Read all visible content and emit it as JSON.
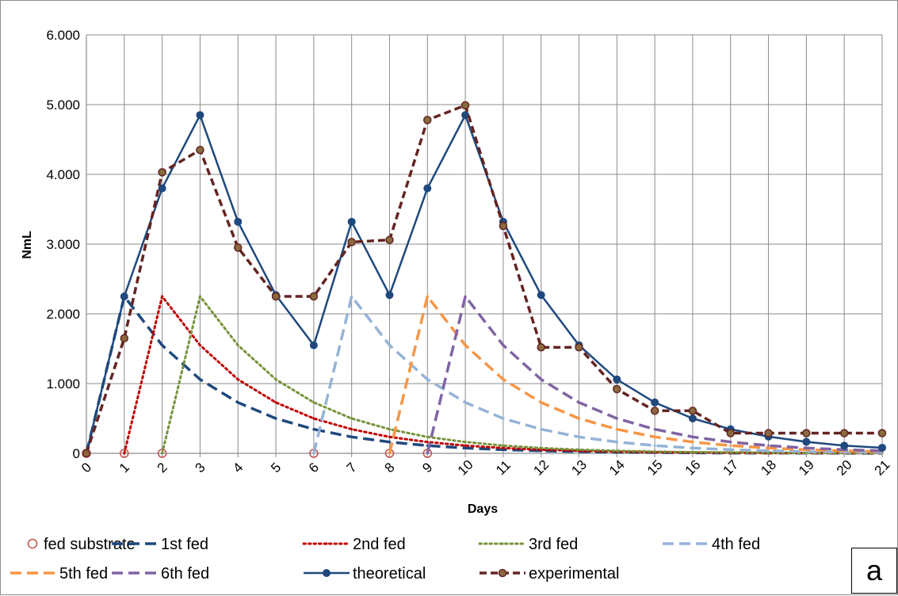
{
  "chart_data": {
    "type": "line",
    "title": "",
    "xlabel": "Days",
    "ylabel": "NmL",
    "x": [
      0,
      1,
      2,
      3,
      4,
      5,
      6,
      7,
      8,
      9,
      10,
      11,
      12,
      13,
      14,
      15,
      16,
      17,
      18,
      19,
      20,
      21
    ],
    "x_tick_labels": [
      "0",
      "1",
      "2",
      "3",
      "4",
      "5",
      "6",
      "7",
      "8",
      "9",
      "10",
      "11",
      "12",
      "13",
      "14",
      "15",
      "16",
      "17",
      "18",
      "19",
      "20",
      "21"
    ],
    "y_tick_labels": [
      "0",
      "1.000",
      "2.000",
      "3.000",
      "4.000",
      "5.000",
      "6.000"
    ],
    "y_ticks": [
      0,
      1000,
      2000,
      3000,
      4000,
      5000,
      6000
    ],
    "xlim": [
      0,
      21
    ],
    "ylim": [
      0,
      6000
    ],
    "grid": true,
    "legend_position": "bottom",
    "panel_label": "a",
    "series": [
      {
        "name": "fed substrate",
        "style": "markers",
        "color": "#c0504d",
        "points": [
          [
            0,
            0
          ],
          [
            1,
            0
          ],
          [
            2,
            0
          ],
          [
            6,
            0
          ],
          [
            8,
            0
          ],
          [
            9,
            0
          ]
        ]
      },
      {
        "name": "1st fed",
        "style": "long-dash",
        "color": "#1f497d",
        "points": [
          [
            0,
            0
          ],
          [
            1,
            2250
          ],
          [
            2,
            1550
          ],
          [
            3,
            1060
          ],
          [
            4,
            730
          ],
          [
            5,
            500
          ],
          [
            6,
            345
          ],
          [
            7,
            235
          ],
          [
            8,
            162
          ],
          [
            9,
            111
          ],
          [
            10,
            76
          ],
          [
            11,
            52
          ],
          [
            12,
            36
          ],
          [
            13,
            25
          ],
          [
            14,
            17
          ],
          [
            15,
            12
          ],
          [
            16,
            8
          ],
          [
            17,
            5
          ],
          [
            18,
            4
          ],
          [
            19,
            3
          ],
          [
            20,
            2
          ],
          [
            21,
            1
          ]
        ]
      },
      {
        "name": "2nd fed",
        "style": "dot",
        "color": "#c00000",
        "points": [
          [
            1,
            0
          ],
          [
            2,
            2250
          ],
          [
            3,
            1550
          ],
          [
            4,
            1060
          ],
          [
            5,
            730
          ],
          [
            6,
            500
          ],
          [
            7,
            345
          ],
          [
            8,
            235
          ],
          [
            9,
            162
          ],
          [
            10,
            111
          ],
          [
            11,
            76
          ],
          [
            12,
            52
          ],
          [
            13,
            36
          ],
          [
            14,
            25
          ],
          [
            15,
            17
          ],
          [
            16,
            12
          ],
          [
            17,
            8
          ],
          [
            18,
            5
          ],
          [
            19,
            4
          ],
          [
            20,
            3
          ],
          [
            21,
            2
          ]
        ]
      },
      {
        "name": "3rd fed",
        "style": "dot",
        "color": "#77933c",
        "points": [
          [
            2,
            0
          ],
          [
            3,
            2250
          ],
          [
            4,
            1550
          ],
          [
            5,
            1060
          ],
          [
            6,
            730
          ],
          [
            7,
            500
          ],
          [
            8,
            345
          ],
          [
            9,
            235
          ],
          [
            10,
            162
          ],
          [
            11,
            111
          ],
          [
            12,
            76
          ],
          [
            13,
            52
          ],
          [
            14,
            36
          ],
          [
            15,
            25
          ],
          [
            16,
            17
          ],
          [
            17,
            12
          ],
          [
            18,
            8
          ],
          [
            19,
            5
          ],
          [
            20,
            4
          ],
          [
            21,
            3
          ]
        ]
      },
      {
        "name": "4th fed",
        "style": "long-dash",
        "color": "#95b3d7",
        "points": [
          [
            6,
            0
          ],
          [
            7,
            2250
          ],
          [
            8,
            1550
          ],
          [
            9,
            1060
          ],
          [
            10,
            730
          ],
          [
            11,
            500
          ],
          [
            12,
            345
          ],
          [
            13,
            235
          ],
          [
            14,
            162
          ],
          [
            15,
            111
          ],
          [
            16,
            76
          ],
          [
            17,
            52
          ],
          [
            18,
            36
          ],
          [
            19,
            25
          ],
          [
            20,
            17
          ],
          [
            21,
            12
          ]
        ]
      },
      {
        "name": "5th fed",
        "style": "long-dash",
        "color": "#f79646",
        "points": [
          [
            8,
            0
          ],
          [
            9,
            2250
          ],
          [
            10,
            1550
          ],
          [
            11,
            1060
          ],
          [
            12,
            730
          ],
          [
            13,
            500
          ],
          [
            14,
            345
          ],
          [
            15,
            235
          ],
          [
            16,
            162
          ],
          [
            17,
            111
          ],
          [
            18,
            76
          ],
          [
            19,
            52
          ],
          [
            20,
            36
          ],
          [
            21,
            25
          ]
        ]
      },
      {
        "name": "6th fed",
        "style": "long-dash",
        "color": "#8064a2",
        "points": [
          [
            9,
            0
          ],
          [
            10,
            2250
          ],
          [
            11,
            1550
          ],
          [
            12,
            1060
          ],
          [
            13,
            730
          ],
          [
            14,
            500
          ],
          [
            15,
            345
          ],
          [
            16,
            235
          ],
          [
            17,
            162
          ],
          [
            18,
            111
          ],
          [
            19,
            76
          ],
          [
            20,
            52
          ],
          [
            21,
            36
          ]
        ]
      },
      {
        "name": "theoretical",
        "style": "solid",
        "color": "#1f497d",
        "points": [
          [
            0,
            0
          ],
          [
            1,
            2250
          ],
          [
            2,
            3800
          ],
          [
            3,
            4850
          ],
          [
            4,
            3320
          ],
          [
            5,
            2270
          ],
          [
            6,
            1550
          ],
          [
            7,
            3320
          ],
          [
            8,
            2270
          ],
          [
            9,
            3800
          ],
          [
            10,
            4850
          ],
          [
            11,
            3320
          ],
          [
            12,
            2270
          ],
          [
            13,
            1550
          ],
          [
            14,
            1060
          ],
          [
            15,
            730
          ],
          [
            16,
            500
          ],
          [
            17,
            345
          ],
          [
            18,
            240
          ],
          [
            19,
            165
          ],
          [
            20,
            110
          ],
          [
            21,
            80
          ]
        ]
      },
      {
        "name": "experimental",
        "style": "dash",
        "color": "#632523",
        "points": [
          [
            0,
            0
          ],
          [
            1,
            1650
          ],
          [
            2,
            4030
          ],
          [
            3,
            4350
          ],
          [
            4,
            2950
          ],
          [
            5,
            2250
          ],
          [
            6,
            2250
          ],
          [
            7,
            3030
          ],
          [
            8,
            3060
          ],
          [
            9,
            4780
          ],
          [
            10,
            4990
          ],
          [
            11,
            3260
          ],
          [
            12,
            1520
          ],
          [
            13,
            1520
          ],
          [
            14,
            920
          ],
          [
            15,
            610
          ],
          [
            16,
            610
          ],
          [
            17,
            290
          ],
          [
            18,
            290
          ],
          [
            19,
            290
          ],
          [
            20,
            290
          ],
          [
            21,
            290
          ]
        ]
      }
    ]
  }
}
